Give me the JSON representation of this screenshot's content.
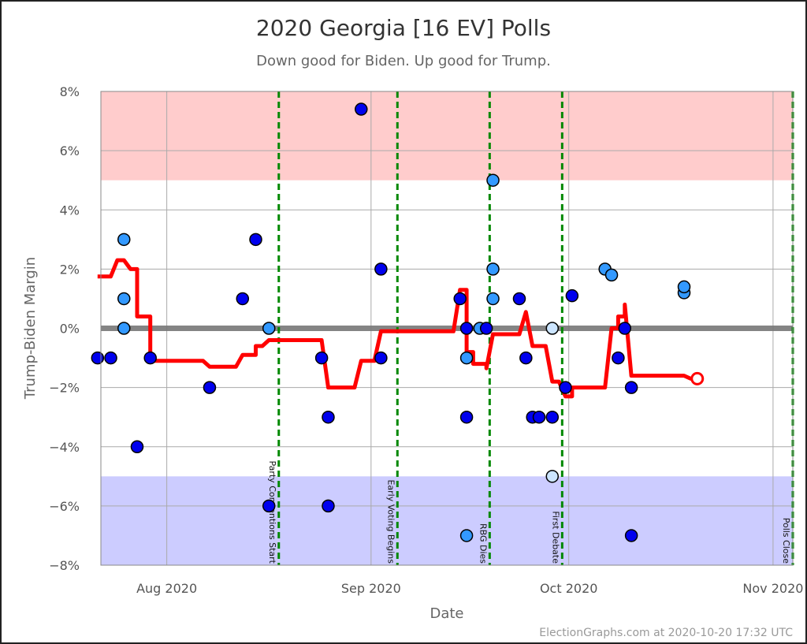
{
  "chart_data": {
    "type": "scatter",
    "title": "2020 Georgia [16 EV] Polls",
    "subtitle": "Down good for Biden. Up good for Trump.",
    "xlabel": "Date",
    "ylabel": "Trump-Biden Margin",
    "xlim": [
      "2020-07-22",
      "2020-11-04"
    ],
    "ylim": [
      -8,
      8
    ],
    "yticks": [
      8,
      6,
      4,
      2,
      0,
      -2,
      -4,
      -6,
      -8
    ],
    "ytick_labels": [
      "8%",
      "6%",
      "4%",
      "2%",
      "0%",
      "−2%",
      "−4%",
      "−6%",
      "−8%"
    ],
    "xticks": [
      "2020-08-01",
      "2020-09-01",
      "2020-10-01",
      "2020-11-01"
    ],
    "xtick_labels": [
      "Aug 2020",
      "Sep 2020",
      "Oct 2020",
      "Nov 2020"
    ],
    "grid": true,
    "bands": [
      {
        "from": 5,
        "to": 8,
        "color": "#ffcccc"
      },
      {
        "from": -8,
        "to": -5,
        "color": "#ccccff"
      }
    ],
    "colors": {
      "poll_dark": "#0000ee",
      "poll_medium": "#3399ff",
      "poll_light": "#cce5ff",
      "average": "#ff0000",
      "event": "#008800",
      "zero": "#777777"
    },
    "polls": [
      {
        "date": "2020-07-21",
        "value": -1,
        "shade": "poll_dark"
      },
      {
        "date": "2020-07-23",
        "value": -1,
        "shade": "poll_dark"
      },
      {
        "date": "2020-07-25",
        "value": 3,
        "shade": "poll_medium"
      },
      {
        "date": "2020-07-25",
        "value": 1,
        "shade": "poll_medium"
      },
      {
        "date": "2020-07-25",
        "value": 0,
        "shade": "poll_medium"
      },
      {
        "date": "2020-07-27",
        "value": -4,
        "shade": "poll_dark"
      },
      {
        "date": "2020-07-29",
        "value": -1,
        "shade": "poll_dark"
      },
      {
        "date": "2020-08-07",
        "value": -2,
        "shade": "poll_dark"
      },
      {
        "date": "2020-08-12",
        "value": 1,
        "shade": "poll_dark"
      },
      {
        "date": "2020-08-14",
        "value": 3,
        "shade": "poll_dark"
      },
      {
        "date": "2020-08-16",
        "value": 0,
        "shade": "poll_medium"
      },
      {
        "date": "2020-08-16",
        "value": -6,
        "shade": "poll_dark"
      },
      {
        "date": "2020-08-24",
        "value": -1,
        "shade": "poll_dark"
      },
      {
        "date": "2020-08-25",
        "value": -3,
        "shade": "poll_dark"
      },
      {
        "date": "2020-08-25",
        "value": -6,
        "shade": "poll_dark"
      },
      {
        "date": "2020-08-30",
        "value": 7.4,
        "shade": "poll_dark"
      },
      {
        "date": "2020-09-02",
        "value": -1,
        "shade": "poll_dark"
      },
      {
        "date": "2020-09-02",
        "value": 2,
        "shade": "poll_dark"
      },
      {
        "date": "2020-09-14",
        "value": 1,
        "shade": "poll_dark"
      },
      {
        "date": "2020-09-15",
        "value": -3,
        "shade": "poll_dark"
      },
      {
        "date": "2020-09-15",
        "value": 0,
        "shade": "poll_dark"
      },
      {
        "date": "2020-09-15",
        "value": -1,
        "shade": "poll_medium"
      },
      {
        "date": "2020-09-15",
        "value": -7,
        "shade": "poll_medium"
      },
      {
        "date": "2020-09-17",
        "value": 0,
        "shade": "poll_medium"
      },
      {
        "date": "2020-09-18",
        "value": 0,
        "shade": "poll_dark"
      },
      {
        "date": "2020-09-19",
        "value": 5,
        "shade": "poll_medium"
      },
      {
        "date": "2020-09-19",
        "value": 2,
        "shade": "poll_medium"
      },
      {
        "date": "2020-09-19",
        "value": 1,
        "shade": "poll_medium"
      },
      {
        "date": "2020-09-23",
        "value": 1,
        "shade": "poll_dark"
      },
      {
        "date": "2020-09-24",
        "value": -1,
        "shade": "poll_dark"
      },
      {
        "date": "2020-09-25",
        "value": -3,
        "shade": "poll_dark"
      },
      {
        "date": "2020-09-26",
        "value": -3,
        "shade": "poll_dark"
      },
      {
        "date": "2020-09-28",
        "value": -3,
        "shade": "poll_dark"
      },
      {
        "date": "2020-09-28",
        "value": 0,
        "shade": "poll_light"
      },
      {
        "date": "2020-09-28",
        "value": -5,
        "shade": "poll_light"
      },
      {
        "date": "2020-09-30",
        "value": -2,
        "shade": "poll_dark"
      },
      {
        "date": "2020-10-01",
        "value": 1.1,
        "shade": "poll_dark"
      },
      {
        "date": "2020-10-06",
        "value": 2,
        "shade": "poll_medium"
      },
      {
        "date": "2020-10-07",
        "value": 1.8,
        "shade": "poll_medium"
      },
      {
        "date": "2020-10-08",
        "value": -1,
        "shade": "poll_dark"
      },
      {
        "date": "2020-10-09",
        "value": 0,
        "shade": "poll_dark"
      },
      {
        "date": "2020-10-10",
        "value": -2,
        "shade": "poll_dark"
      },
      {
        "date": "2020-10-10",
        "value": -7,
        "shade": "poll_dark"
      },
      {
        "date": "2020-10-18",
        "value": 1.2,
        "shade": "poll_medium"
      },
      {
        "date": "2020-10-18",
        "value": 1.4,
        "shade": "poll_medium"
      }
    ],
    "average": [
      [
        "2020-07-21",
        1.75
      ],
      [
        "2020-07-23",
        1.75
      ],
      [
        "2020-07-24",
        2.3
      ],
      [
        "2020-07-25",
        2.3
      ],
      [
        "2020-07-26",
        2.0
      ],
      [
        "2020-07-27",
        2.0
      ],
      [
        "2020-07-27",
        0.4
      ],
      [
        "2020-07-29",
        0.4
      ],
      [
        "2020-07-29",
        -1.1
      ],
      [
        "2020-08-06",
        -1.1
      ],
      [
        "2020-08-07",
        -1.3
      ],
      [
        "2020-08-11",
        -1.3
      ],
      [
        "2020-08-12",
        -0.9
      ],
      [
        "2020-08-14",
        -0.9
      ],
      [
        "2020-08-14",
        -0.6
      ],
      [
        "2020-08-15",
        -0.6
      ],
      [
        "2020-08-16",
        -0.4
      ],
      [
        "2020-08-24",
        -0.4
      ],
      [
        "2020-08-25",
        -2.0
      ],
      [
        "2020-08-29",
        -2.0
      ],
      [
        "2020-08-30",
        -1.1
      ],
      [
        "2020-09-01",
        -1.1
      ],
      [
        "2020-09-02",
        -0.1
      ],
      [
        "2020-09-13",
        -0.1
      ],
      [
        "2020-09-14",
        1.3
      ],
      [
        "2020-09-15",
        1.3
      ],
      [
        "2020-09-15",
        -0.8
      ],
      [
        "2020-09-16",
        -0.8
      ],
      [
        "2020-09-16",
        -1.2
      ],
      [
        "2020-09-18",
        -1.2
      ],
      [
        "2020-09-18",
        -1.35
      ],
      [
        "2020-09-19",
        -0.2
      ],
      [
        "2020-09-23",
        -0.2
      ],
      [
        "2020-09-24",
        0.55
      ],
      [
        "2020-09-25",
        -0.6
      ],
      [
        "2020-09-27",
        -0.6
      ],
      [
        "2020-09-28",
        -1.8
      ],
      [
        "2020-09-29",
        -1.8
      ],
      [
        "2020-09-30",
        -2.3
      ],
      [
        "2020-10-01",
        -2.3
      ],
      [
        "2020-10-01",
        -2.0
      ],
      [
        "2020-10-06",
        -2.0
      ],
      [
        "2020-10-07",
        0
      ],
      [
        "2020-10-08",
        0
      ],
      [
        "2020-10-08",
        0.4
      ],
      [
        "2020-10-09",
        0.4
      ],
      [
        "2020-10-09",
        0.8
      ],
      [
        "2020-10-10",
        -1.6
      ],
      [
        "2020-10-18",
        -1.6
      ],
      [
        "2020-10-19",
        -1.7
      ],
      [
        "2020-10-20",
        -1.7
      ]
    ],
    "average_end": {
      "date": "2020-10-20",
      "value": -1.7
    },
    "events": [
      {
        "date": "2020-08-17",
        "label": "Party Conventions Start"
      },
      {
        "date": "2020-09-04",
        "label": "Early Voting Begins"
      },
      {
        "date": "2020-09-18",
        "label": "RBG Dies"
      },
      {
        "date": "2020-09-29",
        "label": "First Debate"
      },
      {
        "date": "2020-11-03",
        "label": "Polls Close"
      }
    ],
    "credit": "ElectionGraphs.com at 2020-10-20 17:32 UTC"
  }
}
